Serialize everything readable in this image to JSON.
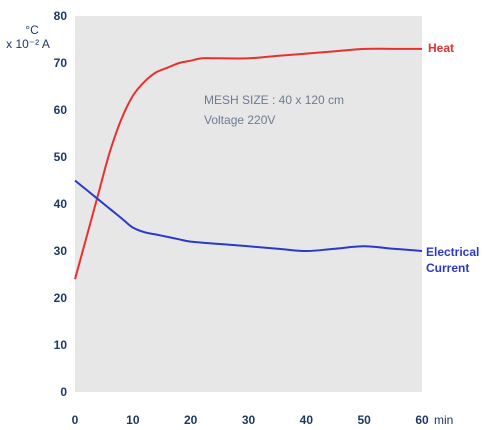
{
  "chart_data": {
    "type": "line",
    "x_unit": "min",
    "y_unit_primary": "°C",
    "y_unit_secondary": "x 10⁻² A",
    "xlim": [
      0,
      60
    ],
    "ylim": [
      0,
      80
    ],
    "x_ticks": [
      0,
      10,
      20,
      30,
      40,
      50,
      60
    ],
    "y_ticks": [
      0,
      10,
      20,
      30,
      40,
      50,
      60,
      70,
      80
    ],
    "grid": false,
    "plot_background": "#e7e7e7",
    "annotations": [
      "MESH SIZE : 40 x 120 cm",
      "Voltage 220V"
    ],
    "series": [
      {
        "name": "Heat",
        "color": "#e83030",
        "x": [
          0,
          2,
          4,
          6,
          8,
          10,
          12,
          14,
          16,
          18,
          20,
          22,
          25,
          30,
          35,
          40,
          45,
          50,
          55,
          60
        ],
        "y": [
          24,
          33,
          42,
          51,
          58,
          63,
          66,
          68,
          69,
          70,
          70.5,
          71,
          71,
          71,
          71.5,
          72,
          72.5,
          73,
          73,
          73
        ]
      },
      {
        "name": "Electrical Current",
        "name_lines": [
          "Electrical",
          "Current"
        ],
        "color": "#2c39c8",
        "x": [
          0,
          2,
          4,
          6,
          8,
          10,
          12,
          14,
          16,
          18,
          20,
          25,
          30,
          35,
          40,
          45,
          50,
          55,
          60
        ],
        "y": [
          45,
          43,
          41,
          39,
          37,
          35,
          34,
          33.5,
          33,
          32.5,
          32,
          31.5,
          31,
          30.5,
          30,
          30.5,
          31,
          30.5,
          30
        ]
      }
    ]
  }
}
